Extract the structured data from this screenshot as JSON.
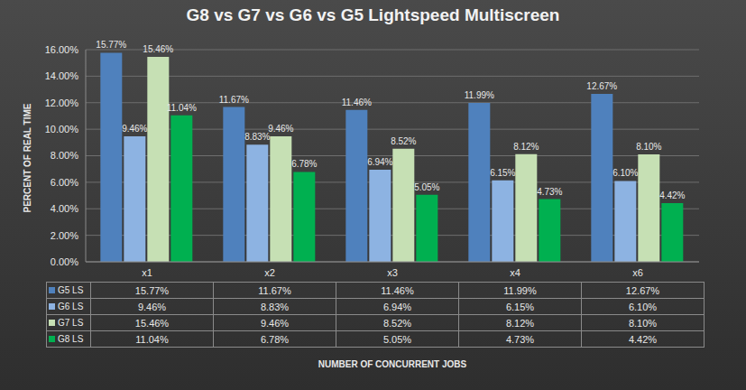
{
  "chart_data": {
    "type": "bar",
    "title": "G8 vs G7 vs G6 vs G5 Lightspeed Multiscreen",
    "x_label": "NUMBER OF CONCURRENT JOBS",
    "y_label": "PERCENT OF REAL TIME",
    "categories": [
      "x1",
      "x2",
      "x3",
      "x4",
      "x6"
    ],
    "series": [
      {
        "name": "G5 LS",
        "color": "#4f81bd",
        "values": [
          15.77,
          11.67,
          11.46,
          11.99,
          12.67
        ],
        "value_labels": [
          "15.77%",
          "11.67%",
          "11.46%",
          "11.99%",
          "12.67%"
        ]
      },
      {
        "name": "G6 LS",
        "color": "#8db3e2",
        "values": [
          9.46,
          8.83,
          6.94,
          6.15,
          6.1
        ],
        "value_labels": [
          "9.46%",
          "8.83%",
          "6.94%",
          "6.15%",
          "6.10%"
        ]
      },
      {
        "name": "G7 LS",
        "color": "#c6e0b4",
        "values": [
          15.46,
          9.46,
          8.52,
          8.12,
          8.1
        ],
        "value_labels": [
          "15.46%",
          "9.46%",
          "8.52%",
          "8.12%",
          "8.10%"
        ]
      },
      {
        "name": "G8 LS",
        "color": "#00b050",
        "values": [
          11.04,
          6.78,
          5.05,
          4.73,
          4.42
        ],
        "value_labels": [
          "11.04%",
          "6.78%",
          "5.05%",
          "4.73%",
          "4.42%"
        ]
      }
    ],
    "ylim": [
      0,
      16
    ],
    "yticks": [
      {
        "value": 0,
        "label": "0.00%"
      },
      {
        "value": 2,
        "label": "2.00%"
      },
      {
        "value": 4,
        "label": "4.00%"
      },
      {
        "value": 6,
        "label": "6.00%"
      },
      {
        "value": 8,
        "label": "8.00%"
      },
      {
        "value": 10,
        "label": "10.00%"
      },
      {
        "value": 12,
        "label": "12.00%"
      },
      {
        "value": 14,
        "label": "14.00%"
      },
      {
        "value": 16,
        "label": "16.00%"
      }
    ],
    "grid": true,
    "data_labels": true
  }
}
